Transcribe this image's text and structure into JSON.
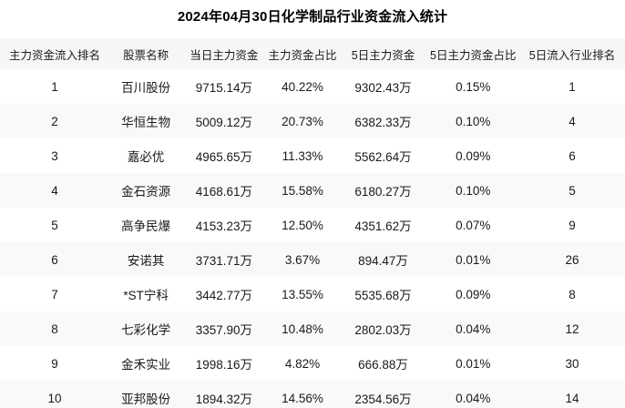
{
  "chart_data": {
    "type": "table",
    "title": "2024年04月30日化学制品行业资金流入统计",
    "columns": [
      "主力资金流入排名",
      "股票名称",
      "当日主力资金",
      "主力资金占比",
      "5日主力资金",
      "5日主力资金占比",
      "5日流入行业排名"
    ],
    "rows": [
      [
        "1",
        "百川股份",
        "9715.14万",
        "40.22%",
        "9302.43万",
        "0.15%",
        "1"
      ],
      [
        "2",
        "华恒生物",
        "5009.12万",
        "20.73%",
        "6382.33万",
        "0.10%",
        "4"
      ],
      [
        "3",
        "嘉必优",
        "4965.65万",
        "11.33%",
        "5562.64万",
        "0.09%",
        "6"
      ],
      [
        "4",
        "金石资源",
        "4168.61万",
        "15.58%",
        "6180.27万",
        "0.10%",
        "5"
      ],
      [
        "5",
        "高争民爆",
        "4153.23万",
        "12.50%",
        "4351.62万",
        "0.07%",
        "9"
      ],
      [
        "6",
        "安诺其",
        "3731.71万",
        "3.67%",
        "894.47万",
        "0.01%",
        "26"
      ],
      [
        "7",
        "*ST宁科",
        "3442.77万",
        "13.55%",
        "5535.68万",
        "0.09%",
        "8"
      ],
      [
        "8",
        "七彩化学",
        "3357.90万",
        "10.48%",
        "2802.03万",
        "0.04%",
        "12"
      ],
      [
        "9",
        "金禾实业",
        "1998.16万",
        "4.82%",
        "666.88万",
        "0.01%",
        "30"
      ],
      [
        "10",
        "亚邦股份",
        "1894.32万",
        "14.56%",
        "2354.56万",
        "0.04%",
        "14"
      ]
    ]
  },
  "colors": {
    "header_bg": "#f5f6f8",
    "row_alt_bg": "#f8f9fb",
    "text": "#1a1a1a",
    "title": "#000000"
  }
}
